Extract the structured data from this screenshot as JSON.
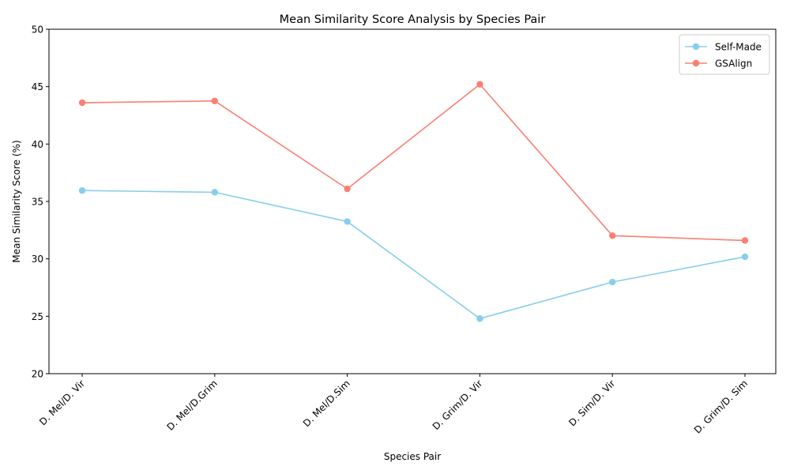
{
  "chart_data": {
    "type": "line",
    "title": "Mean Similarity Score Analysis by Species Pair",
    "xlabel": "Species Pair",
    "ylabel": "Mean Similarity Score (%)",
    "categories": [
      "D. Mel/D. Vir",
      "D. Mel/D.Grim",
      "D. Mel/D.Sim",
      "D. Grim/D. Vir",
      "D. Sim/D. Vir",
      "D. Grim/D. Sim"
    ],
    "ylim": [
      20,
      50
    ],
    "yticks": [
      20,
      25,
      30,
      35,
      40,
      45,
      50
    ],
    "grid": false,
    "legend_position": "top-right",
    "series": [
      {
        "name": "Self-Made",
        "color": "#87CEEB",
        "marker": "circle",
        "values": [
          35.95,
          35.8,
          33.25,
          24.8,
          27.98,
          30.18
        ]
      },
      {
        "name": "GSAlign",
        "color": "#FA8072",
        "marker": "circle",
        "values": [
          43.6,
          43.75,
          36.1,
          45.2,
          32.02,
          31.6
        ]
      }
    ]
  }
}
